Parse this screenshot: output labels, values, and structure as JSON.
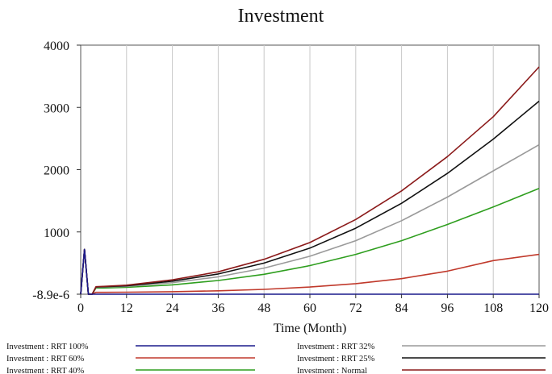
{
  "chart_data": {
    "type": "line",
    "title": "Investment",
    "xlabel": "Time (Month)",
    "ylabel": "",
    "xlim": [
      0,
      120
    ],
    "ylim": [
      -8.9e-06,
      4000
    ],
    "x_ticks": [
      0,
      12,
      24,
      36,
      48,
      60,
      72,
      84,
      96,
      108,
      120
    ],
    "x_tick_labels": [
      "0",
      "12",
      "24",
      "36",
      "48",
      "60",
      "72",
      "84",
      "96",
      "108",
      "120"
    ],
    "y_ticks": [
      -8.9e-06,
      1000,
      2000,
      3000,
      4000
    ],
    "y_tick_labels": [
      "-8.9e-6",
      "1000",
      "2000",
      "3000",
      "4000"
    ],
    "grid": "vertical",
    "legend_position": "bottom",
    "series": [
      {
        "name": "Investment : RRT 100%",
        "color": "#1a1a8c",
        "x": [
          0,
          1,
          2,
          3,
          4,
          6,
          12,
          24,
          36,
          48,
          60,
          72,
          84,
          96,
          108,
          120
        ],
        "values": [
          0,
          720,
          0,
          0,
          0,
          0,
          0,
          0,
          0,
          0,
          0,
          0,
          0,
          0,
          0,
          0
        ]
      },
      {
        "name": "Investment : RRT 60%",
        "color": "#c0392b",
        "x": [
          0,
          1,
          2,
          3,
          4,
          6,
          12,
          24,
          36,
          48,
          60,
          72,
          84,
          96,
          108,
          120
        ],
        "values": [
          0,
          720,
          0,
          0,
          30,
          30,
          32,
          40,
          55,
          78,
          115,
          170,
          250,
          370,
          540,
          640
        ]
      },
      {
        "name": "Investment : RRT 40%",
        "color": "#2e9e1e",
        "x": [
          0,
          1,
          2,
          3,
          4,
          6,
          12,
          24,
          36,
          48,
          60,
          72,
          84,
          96,
          108,
          120
        ],
        "values": [
          0,
          720,
          0,
          0,
          100,
          100,
          110,
          150,
          220,
          320,
          460,
          640,
          860,
          1120,
          1400,
          1700
        ]
      },
      {
        "name": "Investment : RRT 32%",
        "color": "#9a9a9a",
        "x": [
          0,
          1,
          2,
          3,
          4,
          6,
          12,
          24,
          36,
          48,
          60,
          72,
          84,
          96,
          108,
          120
        ],
        "values": [
          0,
          720,
          0,
          0,
          110,
          115,
          125,
          185,
          280,
          420,
          610,
          860,
          1180,
          1560,
          1980,
          2400
        ]
      },
      {
        "name": "Investment : RRT 25%",
        "color": "#111111",
        "x": [
          0,
          1,
          2,
          3,
          4,
          6,
          12,
          24,
          36,
          48,
          60,
          72,
          84,
          96,
          108,
          120
        ],
        "values": [
          0,
          720,
          0,
          0,
          115,
          120,
          135,
          210,
          325,
          500,
          740,
          1060,
          1460,
          1940,
          2490,
          3100
        ]
      },
      {
        "name": "Investment : Normal",
        "color": "#8b1a1a",
        "x": [
          0,
          1,
          2,
          3,
          4,
          6,
          12,
          24,
          36,
          48,
          60,
          72,
          84,
          96,
          108,
          120
        ],
        "values": [
          0,
          720,
          0,
          0,
          120,
          125,
          145,
          230,
          360,
          560,
          830,
          1200,
          1660,
          2210,
          2850,
          3650
        ]
      }
    ]
  }
}
